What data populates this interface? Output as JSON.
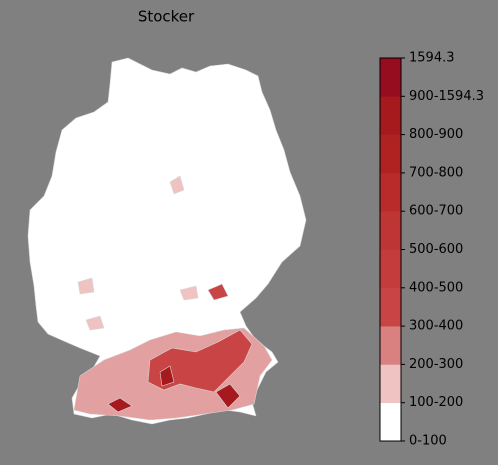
{
  "title": "Stocker",
  "colorbar": {
    "labels": [
      "0-100",
      "100-200",
      "200-300",
      "300-400",
      "400-500",
      "500-600",
      "600-700",
      "700-800",
      "800-900",
      "900-1594.3",
      "1594.3"
    ],
    "colors": [
      "#ffffff",
      "#f0c3c3",
      "#d98181",
      "#c94444",
      "#c43c3c",
      "#bf3434",
      "#b92b2b",
      "#b02222",
      "#a61a1e",
      "#960d20"
    ]
  }
}
